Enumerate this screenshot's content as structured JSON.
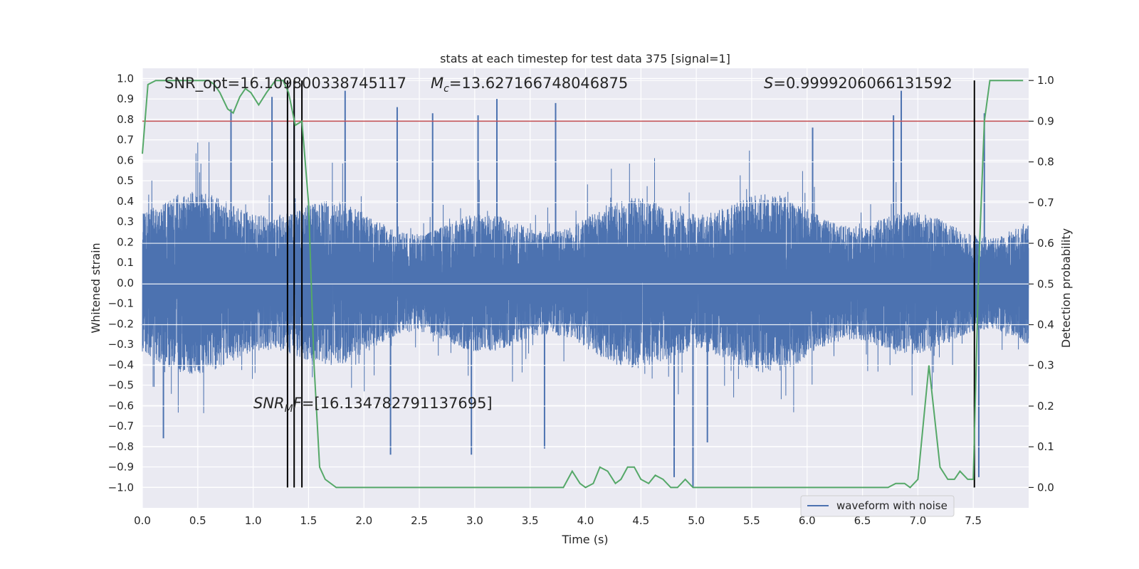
{
  "chart_data": {
    "type": "line",
    "title": "stats at each timestep for test data 375 [signal=1]",
    "xlabel": "Time (s)",
    "ylabel_left": "Whitened strain",
    "ylabel_right": "Detection probability",
    "xlim": [
      0.0,
      8.0
    ],
    "ylim_left": [
      -1.1,
      1.05
    ],
    "ylim_right": [
      -0.05,
      1.03
    ],
    "xticks": [
      "0.0",
      "0.5",
      "1.0",
      "1.5",
      "2.0",
      "2.5",
      "3.0",
      "3.5",
      "4.0",
      "4.5",
      "5.0",
      "5.5",
      "6.0",
      "6.5",
      "7.0",
      "7.5"
    ],
    "yticks_left": [
      "1.0",
      "0.9",
      "0.8",
      "0.7",
      "0.6",
      "0.5",
      "0.4",
      "0.3",
      "0.2",
      "0.1",
      "0.0",
      "-0.1",
      "-0.2",
      "-0.3",
      "-0.4",
      "-0.5",
      "-0.6",
      "-0.7",
      "-0.8",
      "-0.9",
      "-1.0"
    ],
    "yticks_right": [
      "1.0",
      "0.9",
      "0.8",
      "0.7",
      "0.6",
      "0.5",
      "0.4",
      "0.3",
      "0.2",
      "0.1",
      "0.0"
    ],
    "grid": true,
    "legend": {
      "location": "lower-right",
      "entries": [
        "waveform with noise"
      ]
    },
    "annotations": {
      "snr_opt": "SNR_opt=16.109800338745117",
      "mc_symbol": "M",
      "mc_sub": "c",
      "mc_value": "=13.627166748046875",
      "s_symbol": "S",
      "s_value": "=0.9999206066131592",
      "snr_mf_symbol": "SNR",
      "snr_mf_sub": "M",
      "snr_mf_tail": "F",
      "snr_mf_value": "=[16.134782791137695]"
    },
    "threshold": {
      "value": 0.9,
      "axis": "right",
      "color": "#c44e52"
    },
    "vertical_markers": [
      1.31,
      1.37,
      1.44,
      7.51
    ],
    "series": [
      {
        "name": "waveform with noise",
        "axis": "left",
        "color": "#4c72b0",
        "kind": "noise-trace",
        "duration": 8.0,
        "sample_rate": 2048,
        "envelope": {
          "typical_abs_max": 0.45,
          "peak_max": 0.95,
          "peak_min": -1.0
        },
        "highlight_spikes": [
          {
            "x": 0.8,
            "y": 0.85
          },
          {
            "x": 1.17,
            "y": 0.91
          },
          {
            "x": 1.37,
            "y": 0.9
          },
          {
            "x": 1.83,
            "y": 0.94
          },
          {
            "x": 2.3,
            "y": 0.86
          },
          {
            "x": 2.62,
            "y": 0.83
          },
          {
            "x": 3.03,
            "y": 0.82
          },
          {
            "x": 3.2,
            "y": 0.9
          },
          {
            "x": 3.73,
            "y": 0.88
          },
          {
            "x": 6.05,
            "y": 0.76
          },
          {
            "x": 6.78,
            "y": 0.82
          },
          {
            "x": 6.85,
            "y": 0.94
          },
          {
            "x": 7.6,
            "y": 0.83
          },
          {
            "x": 0.19,
            "y": -0.76
          },
          {
            "x": 3.63,
            "y": -0.81
          },
          {
            "x": 4.97,
            "y": -1.0
          },
          {
            "x": 4.8,
            "y": -0.95
          },
          {
            "x": 5.1,
            "y": -0.78
          },
          {
            "x": 7.55,
            "y": -0.95
          },
          {
            "x": 2.24,
            "y": -0.84
          },
          {
            "x": 2.97,
            "y": -0.84
          }
        ]
      },
      {
        "name": "detection probability",
        "axis": "right",
        "color": "#55a868",
        "kind": "line",
        "points": [
          [
            0.0,
            0.82
          ],
          [
            0.05,
            0.99
          ],
          [
            0.12,
            1.0
          ],
          [
            0.3,
            1.0
          ],
          [
            0.6,
            1.0
          ],
          [
            0.65,
            0.99
          ],
          [
            0.7,
            0.97
          ],
          [
            0.77,
            0.93
          ],
          [
            0.82,
            0.92
          ],
          [
            0.88,
            0.96
          ],
          [
            0.93,
            0.98
          ],
          [
            0.98,
            0.97
          ],
          [
            1.05,
            0.94
          ],
          [
            1.12,
            0.97
          ],
          [
            1.2,
            1.0
          ],
          [
            1.27,
            1.0
          ],
          [
            1.32,
            0.97
          ],
          [
            1.38,
            0.89
          ],
          [
            1.44,
            0.9
          ],
          [
            1.5,
            0.7
          ],
          [
            1.55,
            0.3
          ],
          [
            1.6,
            0.05
          ],
          [
            1.65,
            0.02
          ],
          [
            1.75,
            0.0
          ],
          [
            1.85,
            0.0
          ],
          [
            2.0,
            0.0
          ],
          [
            2.5,
            0.0
          ],
          [
            3.0,
            0.0
          ],
          [
            3.2,
            0.0
          ],
          [
            3.5,
            0.0
          ],
          [
            3.8,
            0.0
          ],
          [
            3.88,
            0.04
          ],
          [
            3.95,
            0.01
          ],
          [
            4.0,
            0.0
          ],
          [
            4.07,
            0.01
          ],
          [
            4.13,
            0.05
          ],
          [
            4.2,
            0.04
          ],
          [
            4.27,
            0.01
          ],
          [
            4.32,
            0.02
          ],
          [
            4.38,
            0.05
          ],
          [
            4.44,
            0.05
          ],
          [
            4.5,
            0.02
          ],
          [
            4.57,
            0.01
          ],
          [
            4.63,
            0.03
          ],
          [
            4.7,
            0.02
          ],
          [
            4.77,
            0.0
          ],
          [
            4.83,
            0.0
          ],
          [
            4.9,
            0.02
          ],
          [
            4.97,
            0.0
          ],
          [
            5.05,
            0.0
          ],
          [
            5.2,
            0.0
          ],
          [
            5.5,
            0.0
          ],
          [
            6.0,
            0.0
          ],
          [
            6.5,
            0.0
          ],
          [
            6.73,
            0.0
          ],
          [
            6.8,
            0.01
          ],
          [
            6.88,
            0.01
          ],
          [
            6.93,
            0.0
          ],
          [
            7.0,
            0.02
          ],
          [
            7.1,
            0.3
          ],
          [
            7.2,
            0.05
          ],
          [
            7.27,
            0.02
          ],
          [
            7.33,
            0.02
          ],
          [
            7.38,
            0.04
          ],
          [
            7.45,
            0.02
          ],
          [
            7.5,
            0.02
          ],
          [
            7.55,
            0.55
          ],
          [
            7.6,
            0.9
          ],
          [
            7.65,
            1.0
          ],
          [
            7.7,
            1.0
          ],
          [
            7.95,
            1.0
          ]
        ]
      }
    ]
  }
}
